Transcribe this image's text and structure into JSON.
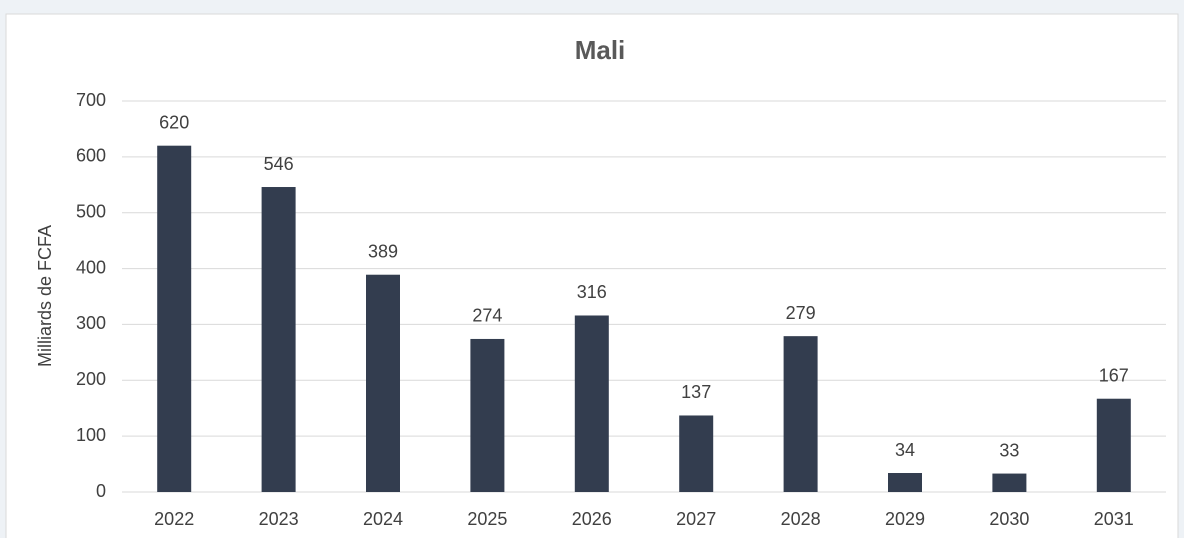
{
  "chart_data": {
    "type": "bar",
    "title": "Mali",
    "y_label": "Milliards de FCFA",
    "categories": [
      "2022",
      "2023",
      "2024",
      "2025",
      "2026",
      "2027",
      "2028",
      "2029",
      "2030",
      "2031"
    ],
    "values": [
      620,
      546,
      389,
      274,
      316,
      137,
      279,
      34,
      33,
      167
    ],
    "color": "#333d4f",
    "ylim": [
      0,
      700
    ],
    "yticks": [
      0,
      100,
      200,
      300,
      400,
      500,
      600,
      700
    ],
    "grid": true
  }
}
